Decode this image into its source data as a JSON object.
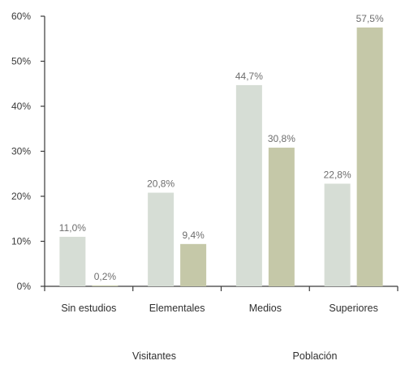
{
  "chart_data": {
    "type": "bar",
    "categories": [
      "Sin estudios",
      "Elementales",
      "Medios",
      "Superiores"
    ],
    "series": [
      {
        "name": "Visitantes",
        "values": [
          11.0,
          20.8,
          44.7,
          22.8
        ],
        "labels": [
          "11,0%",
          "20,8%",
          "44,7%",
          "22,8%"
        ],
        "color": "#d6ddd5"
      },
      {
        "name": "Población",
        "values": [
          0.2,
          9.4,
          30.8,
          57.5
        ],
        "labels": [
          "0,2%",
          "9,4%",
          "30,8%",
          "57,5%"
        ],
        "color": "#c5c8a8"
      }
    ],
    "ylim": [
      0,
      60
    ],
    "yticks": [
      0,
      10,
      20,
      30,
      40,
      50,
      60
    ],
    "ytick_labels": [
      "0%",
      "10%",
      "20%",
      "30%",
      "40%",
      "50%",
      "60%"
    ],
    "legend_position": "bottom",
    "grid": false
  }
}
